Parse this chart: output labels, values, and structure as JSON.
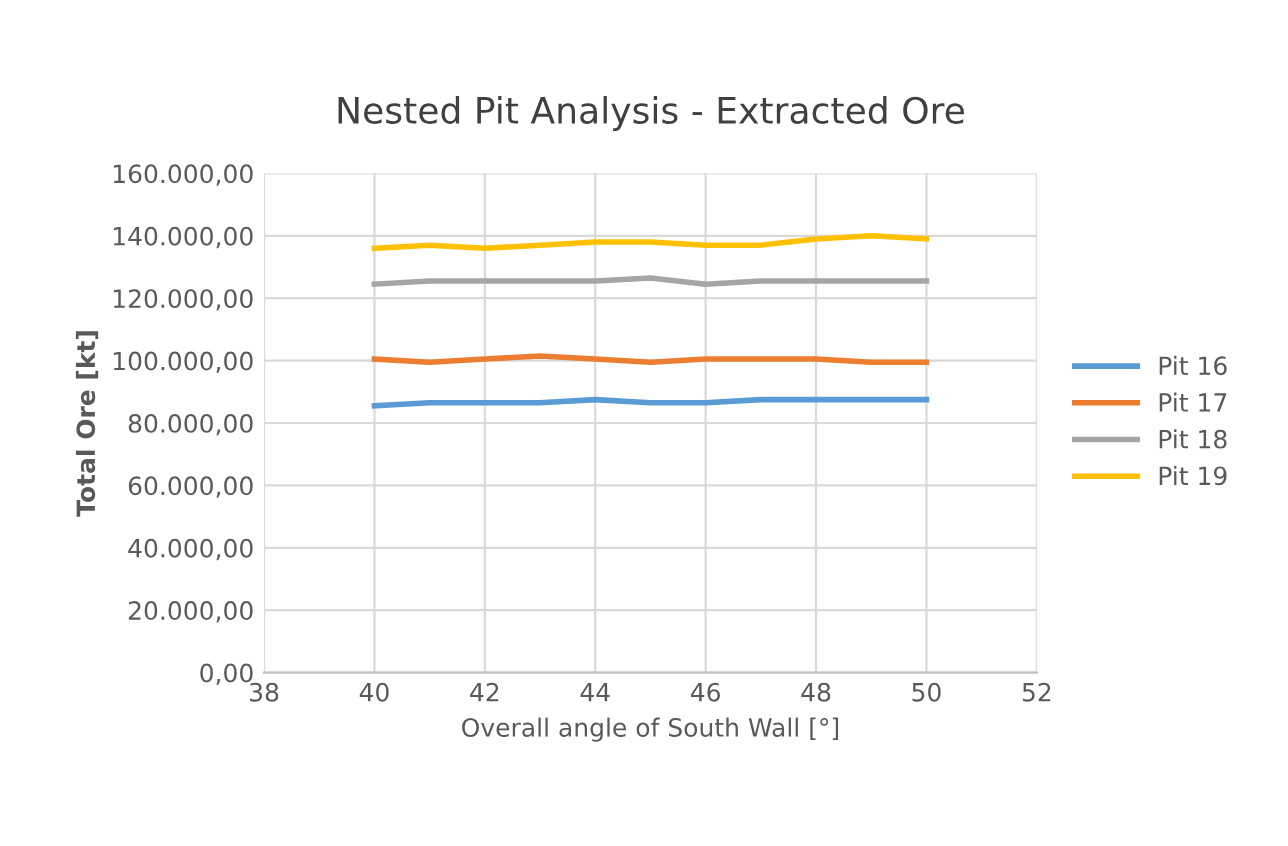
{
  "chart_data": {
    "type": "line",
    "title": "Nested Pit Analysis - Extracted Ore",
    "xlabel": "Overall angle of South Wall [°]",
    "ylabel": "Total Ore [kt]",
    "x": [
      40,
      41,
      42,
      43,
      44,
      45,
      46,
      47,
      48,
      49,
      50
    ],
    "series": [
      {
        "name": "Pit 16",
        "color": "#5b9bd5",
        "values": [
          85500,
          86500,
          86500,
          86500,
          87500,
          86500,
          86500,
          87500,
          87500,
          87500,
          87500
        ]
      },
      {
        "name": "Pit 17",
        "color": "#ed7d31",
        "values": [
          100500,
          99500,
          100500,
          101500,
          100500,
          99500,
          100500,
          100500,
          100500,
          99500,
          99500
        ]
      },
      {
        "name": "Pit 18",
        "color": "#a5a5a5",
        "values": [
          124500,
          125500,
          125500,
          125500,
          125500,
          126500,
          124500,
          125500,
          125500,
          125500,
          125500
        ]
      },
      {
        "name": "Pit 19",
        "color": "#ffc000",
        "values": [
          136000,
          137000,
          136000,
          137000,
          138000,
          138000,
          137000,
          137000,
          139000,
          140000,
          139000
        ]
      }
    ],
    "xlim": [
      38,
      52
    ],
    "xticks": [
      38,
      40,
      42,
      44,
      46,
      48,
      50,
      52
    ],
    "ylim": [
      0,
      160000
    ],
    "yticks": [
      {
        "value": 0,
        "label": "0,00"
      },
      {
        "value": 20000,
        "label": "20.000,00"
      },
      {
        "value": 40000,
        "label": "40.000,00"
      },
      {
        "value": 60000,
        "label": "60.000,00"
      },
      {
        "value": 80000,
        "label": "80.000,00"
      },
      {
        "value": 100000,
        "label": "100.000,00"
      },
      {
        "value": 120000,
        "label": "120.000,00"
      },
      {
        "value": 140000,
        "label": "140.000,00"
      },
      {
        "value": 160000,
        "label": "160.000,00"
      }
    ],
    "grid": true,
    "legend": "right",
    "marker": "none",
    "line_style": "solid"
  }
}
